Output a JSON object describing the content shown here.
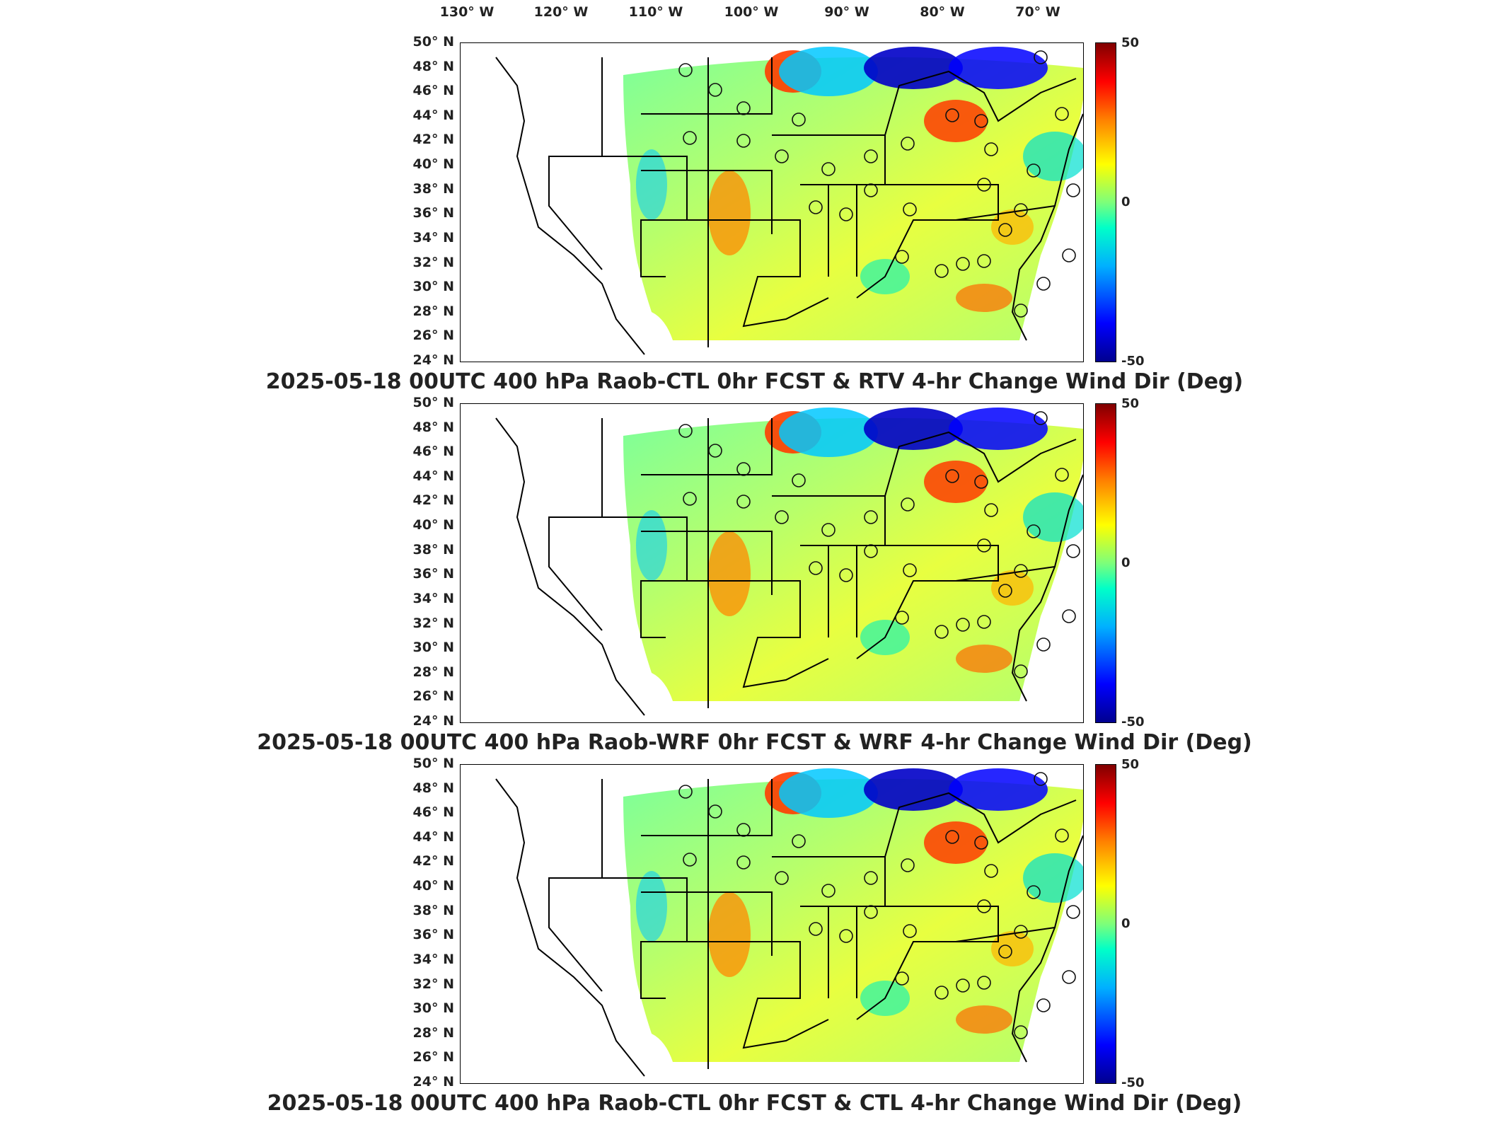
{
  "lon_labels": [
    "130° W",
    "120° W",
    "110° W",
    "100° W",
    "90° W",
    "80° W",
    "70° W"
  ],
  "lat_labels": [
    "50° N",
    "48° N",
    "46° N",
    "44° N",
    "42° N",
    "40° N",
    "38° N",
    "36° N",
    "34° N",
    "32° N",
    "30° N",
    "28° N",
    "26° N",
    "24° N"
  ],
  "colorbar": {
    "max_label": "50",
    "mid_label": "0",
    "min_label": "-50",
    "min": -50,
    "max": 50
  },
  "panels": [
    {
      "title": "2025-05-18 00UTC 400 hPa Raob-CTL 0hr FCST & RTV 4-hr Change Wind Dir (Deg)"
    },
    {
      "title": "2025-05-18 00UTC 400 hPa Raob-WRF 0hr FCST & WRF 4-hr Change Wind Dir (Deg)"
    },
    {
      "title": "2025-05-18 00UTC 400 hPa Raob-CTL 0hr FCST & CTL 4-hr Change Wind Dir (Deg)"
    }
  ]
}
